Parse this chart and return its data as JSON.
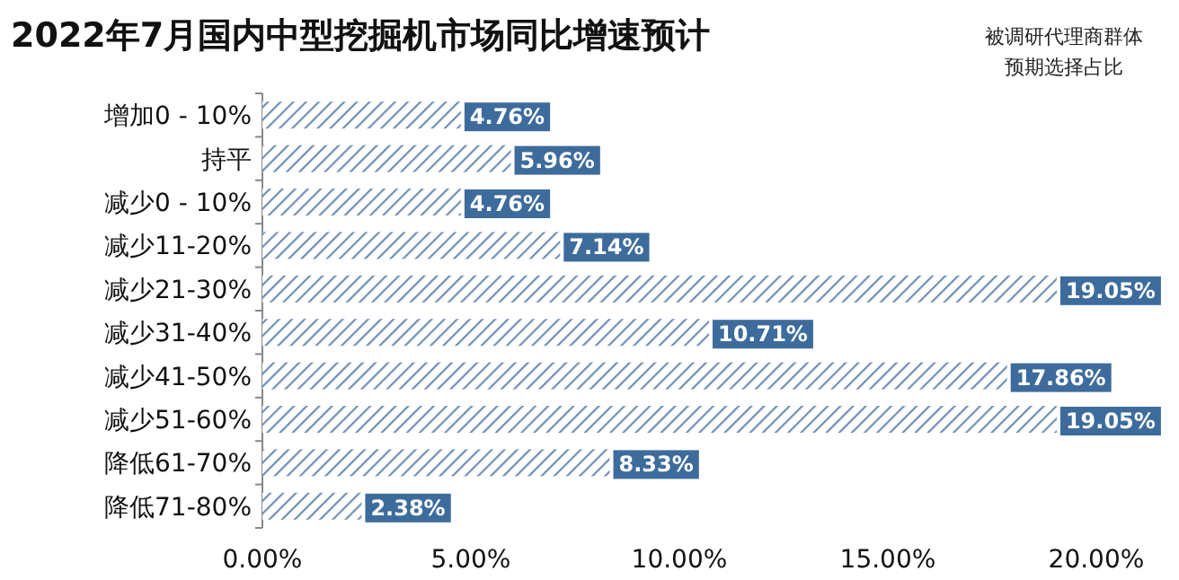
{
  "chart_data": {
    "type": "bar",
    "orientation": "horizontal",
    "title": "2022年7月国内中型挖掘机市场同比增速预计",
    "annotations": [
      "被调研代理商群体",
      "预期选择占比"
    ],
    "categories": [
      "增加0 - 10%",
      "持平",
      "减少0 - 10%",
      "减少11-20%",
      "减少21-30%",
      "减少31-40%",
      "减少41-50%",
      "减少51-60%",
      "降低61-70%",
      "降低71-80%"
    ],
    "values": [
      4.76,
      5.96,
      4.76,
      7.14,
      19.05,
      10.71,
      17.86,
      19.05,
      8.33,
      2.38
    ],
    "value_labels": [
      "4.76%",
      "5.96%",
      "4.76%",
      "7.14%",
      "19.05%",
      "10.71%",
      "17.86%",
      "19.05%",
      "8.33%",
      "2.38%"
    ],
    "color": "#6f8fb3",
    "xlim": [
      0,
      20
    ],
    "xticks": [
      {
        "value": 0,
        "label": "0.00%"
      },
      {
        "value": 5,
        "label": "5.00%"
      },
      {
        "value": 10,
        "label": "10.00%"
      },
      {
        "value": 15,
        "label": "15.00%"
      },
      {
        "value": 20,
        "label": "20.00%"
      }
    ],
    "grid": false
  }
}
